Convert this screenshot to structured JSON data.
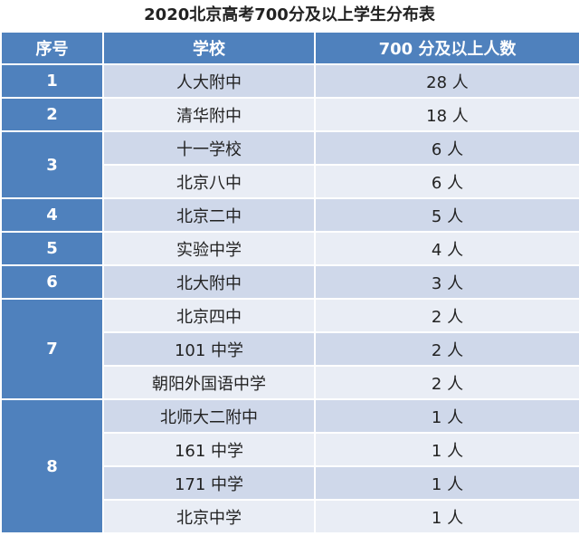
{
  "title": "2020北京高考700分及以上学生分布表",
  "header": {
    "seq": "序号",
    "school": "学校",
    "count": "700 分及以上人数"
  },
  "groups": [
    {
      "seq": "1",
      "rows": [
        {
          "school": "人大附中",
          "count": "28 人"
        }
      ]
    },
    {
      "seq": "2",
      "rows": [
        {
          "school": "清华附中",
          "count": "18 人"
        }
      ]
    },
    {
      "seq": "3",
      "rows": [
        {
          "school": "十一学校",
          "count": "6 人"
        },
        {
          "school": "北京八中",
          "count": "6 人"
        }
      ]
    },
    {
      "seq": "4",
      "rows": [
        {
          "school": "北京二中",
          "count": "5 人"
        }
      ]
    },
    {
      "seq": "5",
      "rows": [
        {
          "school": "实验中学",
          "count": "4 人"
        }
      ]
    },
    {
      "seq": "6",
      "rows": [
        {
          "school": "北大附中",
          "count": "3 人"
        }
      ]
    },
    {
      "seq": "7",
      "rows": [
        {
          "school": "北京四中",
          "count": "2 人"
        },
        {
          "school": "101 中学",
          "count": "2 人"
        },
        {
          "school": "朝阳外国语中学",
          "count": "2 人"
        }
      ]
    },
    {
      "seq": "8",
      "rows": [
        {
          "school": "北师大二附中",
          "count": "1 人"
        },
        {
          "school": "161 中学",
          "count": "1 人"
        },
        {
          "school": "171 中学",
          "count": "1 人"
        },
        {
          "school": "北京中学",
          "count": "1 人"
        }
      ]
    }
  ]
}
